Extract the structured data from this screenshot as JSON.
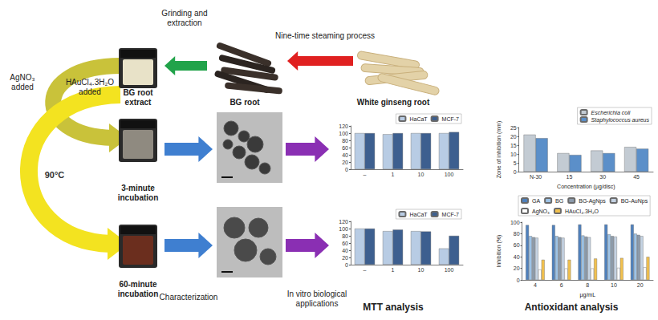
{
  "texts": {
    "grinding": [
      "Grinding and",
      "extraction"
    ],
    "steaming": [
      "Nine-time steaming process"
    ],
    "extract": [
      "BG root",
      "extract"
    ],
    "bg_root": [
      "BG root"
    ],
    "white": [
      "White ginseng root"
    ],
    "agno3": [
      "AgNO₃",
      "added"
    ],
    "haucl4": [
      "HAuCl₄.3H₂O",
      "added"
    ],
    "temp": [
      "90°C"
    ],
    "inc3": [
      "3-minute",
      "incubation"
    ],
    "inc60": [
      "60-minute",
      "incubation"
    ],
    "characterization": [
      "Characterization"
    ],
    "in_vitro": [
      "In vitro biological",
      "applications"
    ],
    "mtt": [
      "MTT analysis"
    ],
    "antioxidant": [
      "Antioxidant analysis"
    ]
  },
  "chart_data": [
    {
      "type": "bar",
      "categories": [
        "–",
        "1",
        "10",
        "100"
      ],
      "series": [
        {
          "name": "HaCaT",
          "color": "#b8cce4",
          "values": [
            100,
            97,
            100,
            100
          ]
        },
        {
          "name": "MCF-7",
          "color": "#3d5f8f",
          "values": [
            100,
            100,
            100,
            103
          ]
        }
      ],
      "ylim": [
        0,
        120
      ],
      "yticks": [
        0,
        20,
        40,
        60,
        80,
        100,
        120
      ],
      "legend": "top-right",
      "grid": false
    },
    {
      "type": "bar",
      "categories": [
        "–",
        "1",
        "10",
        "100"
      ],
      "series": [
        {
          "name": "HaCaT",
          "color": "#b8cce4",
          "values": [
            100,
            93,
            93,
            45
          ]
        },
        {
          "name": "MCF-7",
          "color": "#3d5f8f",
          "values": [
            100,
            97,
            92,
            80
          ]
        }
      ],
      "ylim": [
        0,
        120
      ],
      "yticks": [
        0,
        20,
        40,
        60,
        80,
        100,
        120
      ],
      "legend": "top-right",
      "grid": false
    },
    {
      "type": "bar",
      "x_label": "Concentration (µg/disc)",
      "y_label": "Zone of inhibition (mm)",
      "categories": [
        "N-30",
        "15",
        "30",
        "45"
      ],
      "series": [
        {
          "name": "Escherichia coli",
          "color": "#c3cbd3",
          "values": [
            21,
            10.5,
            12,
            14
          ]
        },
        {
          "name": "Staphylococcus aureus",
          "color": "#5b8fc9",
          "values": [
            19,
            9.5,
            10.5,
            13
          ]
        }
      ],
      "ylim": [
        0,
        25
      ],
      "yticks": [
        0,
        5,
        10,
        15,
        20,
        25
      ],
      "legend": "top-right",
      "grid": false
    },
    {
      "type": "bar",
      "x_label": "µg/mL",
      "y_label": "Inhibition (%)",
      "categories": [
        "4",
        "6",
        "8",
        "10",
        "20"
      ],
      "series": [
        {
          "name": "GA",
          "color": "#4f81bd",
          "values": [
            95,
            95,
            96,
            96,
            96
          ]
        },
        {
          "name": "BG",
          "color": "#9dc3e6",
          "values": [
            76,
            76,
            77,
            79,
            80
          ]
        },
        {
          "name": "BG-AgNps",
          "color": "#8c9bab",
          "values": [
            74,
            74,
            75,
            76,
            78
          ]
        },
        {
          "name": "BG-AuNps",
          "color": "#c5d3e3",
          "values": [
            73,
            73,
            74,
            75,
            76
          ]
        },
        {
          "name": "AgNO₃",
          "color": "#ffffff",
          "values": [
            18,
            20,
            20,
            21,
            22
          ]
        },
        {
          "name": "HAuCl₄.3H₂O",
          "color": "#f2c14e",
          "values": [
            35,
            35,
            37,
            38,
            40
          ]
        }
      ],
      "ylim": [
        0,
        100
      ],
      "yticks": [
        0,
        20,
        40,
        60,
        80,
        100
      ],
      "legend": "top",
      "grid": false
    }
  ]
}
